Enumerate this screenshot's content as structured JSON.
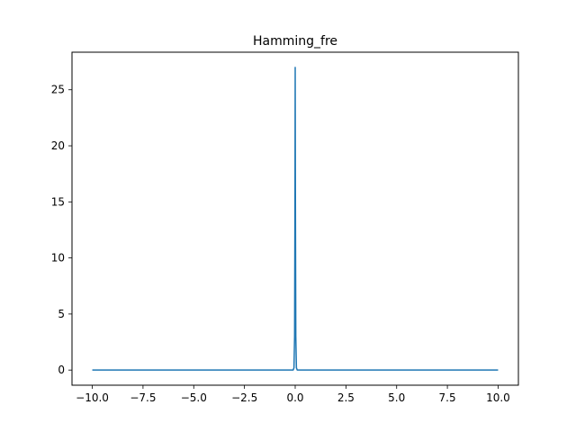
{
  "chart_data": {
    "type": "line",
    "title": "Hamming_fre",
    "xlabel": "",
    "ylabel": "",
    "xlim": [
      -11.0,
      11.0
    ],
    "ylim": [
      -1.35,
      28.35
    ],
    "x_ticks": [
      -10.0,
      -7.5,
      -5.0,
      -2.5,
      0.0,
      2.5,
      5.0,
      7.5,
      10.0
    ],
    "x_tick_labels": [
      "−10.0",
      "−7.5",
      "−5.0",
      "−2.5",
      "0.0",
      "2.5",
      "5.0",
      "7.5",
      "10.0"
    ],
    "y_ticks": [
      0,
      5,
      10,
      15,
      20,
      25
    ],
    "y_tick_labels": [
      "0",
      "5",
      "10",
      "15",
      "20",
      "25"
    ],
    "grid": false,
    "series": [
      {
        "color": "#1f77b4",
        "x": [
          -10.0,
          -0.1,
          -0.06,
          -0.03,
          -0.01,
          0.0,
          0.01,
          0.03,
          0.06,
          0.1,
          10.0
        ],
        "y": [
          0.0,
          0.0,
          0.2,
          3.0,
          16.0,
          27.0,
          16.0,
          3.0,
          0.2,
          0.0,
          0.0
        ]
      }
    ]
  }
}
